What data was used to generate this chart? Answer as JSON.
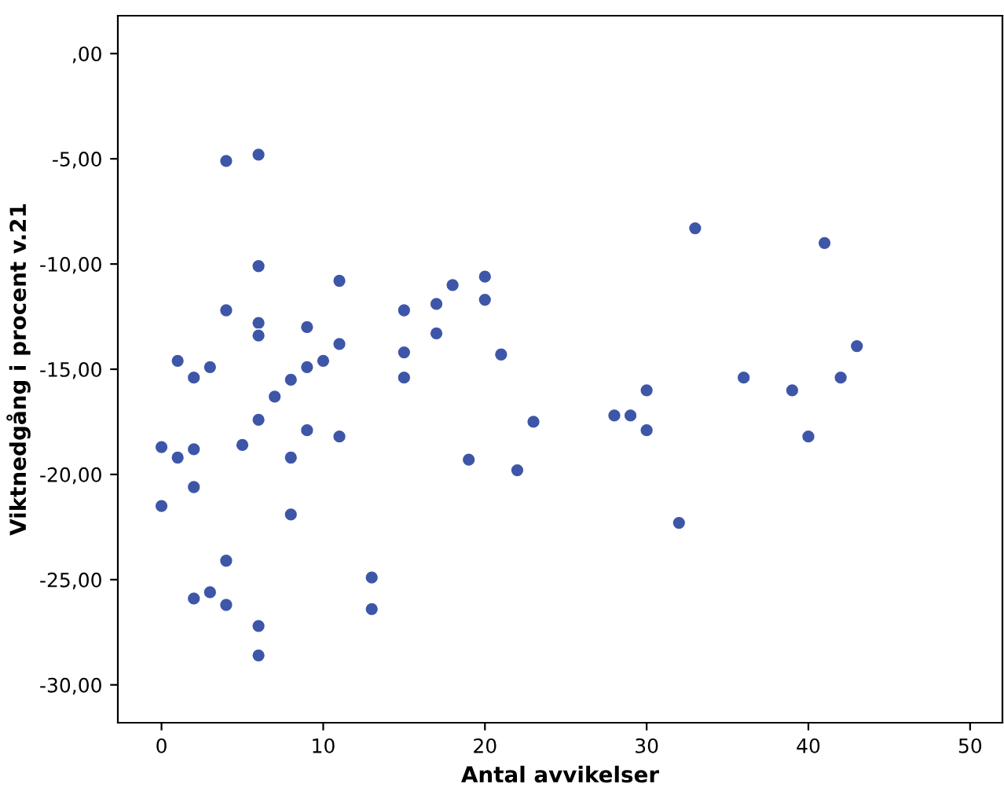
{
  "chart_data": {
    "type": "scatter",
    "xlabel": "Antal avvikelser",
    "ylabel": "Viktnedgång i procent v.21",
    "x": [
      0,
      0,
      1,
      1,
      2,
      2,
      2,
      2,
      3,
      3,
      4,
      4,
      4,
      4,
      5,
      6,
      6,
      6,
      6,
      6,
      6,
      6,
      7,
      8,
      8,
      8,
      9,
      9,
      9,
      10,
      11,
      11,
      11,
      13,
      13,
      15,
      15,
      15,
      17,
      17,
      18,
      19,
      20,
      20,
      21,
      22,
      23,
      28,
      29,
      30,
      30,
      32,
      33,
      36,
      39,
      40,
      41,
      42,
      43
    ],
    "values": [
      -18.7,
      -21.5,
      -19.2,
      -14.6,
      -15.4,
      -18.8,
      -20.6,
      -25.9,
      -14.9,
      -25.6,
      -5.1,
      -12.2,
      -24.1,
      -26.2,
      -18.6,
      -4.8,
      -10.1,
      -12.8,
      -13.4,
      -17.4,
      -27.2,
      -28.6,
      -16.3,
      -15.5,
      -19.2,
      -21.9,
      -13.0,
      -14.9,
      -17.9,
      -14.6,
      -10.8,
      -13.8,
      -18.2,
      -24.9,
      -26.4,
      -12.2,
      -14.2,
      -15.4,
      -13.3,
      -11.9,
      -11.0,
      -19.3,
      -10.6,
      -11.7,
      -14.3,
      -19.8,
      -17.5,
      -17.2,
      -17.2,
      -16.0,
      -17.9,
      -22.3,
      -8.3,
      -15.4,
      -16.0,
      -18.2,
      -9.0,
      -15.4,
      -13.9
    ],
    "color": "#3d56a8",
    "marker": "circle",
    "grid": false,
    "xlim": [
      -2.7,
      52
    ],
    "xticks": [
      0,
      10,
      20,
      30,
      40,
      50
    ],
    "ylim": [
      -31.8,
      1.8
    ],
    "yticks": [
      {
        "value": 0,
        "label": ",00"
      },
      {
        "value": -5,
        "label": "-5,00"
      },
      {
        "value": -10,
        "label": "-10,00"
      },
      {
        "value": -15,
        "label": "-15,00"
      },
      {
        "value": -20,
        "label": "-20,00"
      },
      {
        "value": -25,
        "label": "-25,00"
      },
      {
        "value": -30,
        "label": "-30,00"
      }
    ]
  }
}
